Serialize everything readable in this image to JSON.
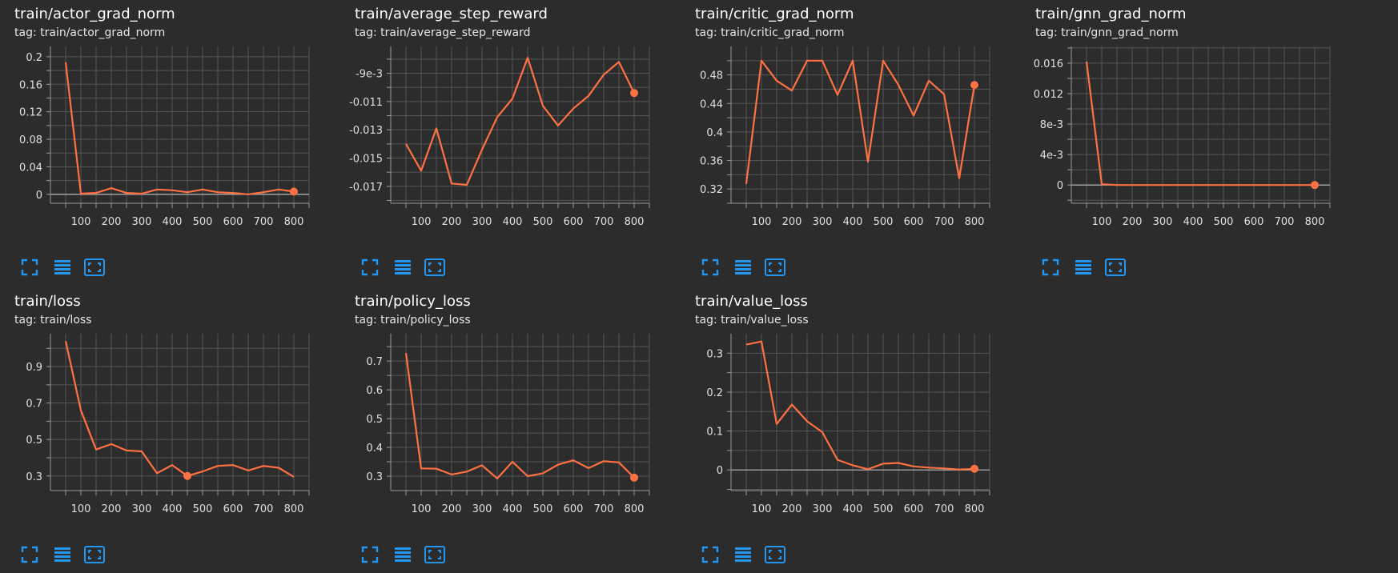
{
  "theme": {
    "background": "#2c2c2c",
    "line_color": "#ff7043",
    "grid_color": "#555555",
    "axis_color": "#999999",
    "tick_text_color": "#e0e0e0",
    "icon_color": "#2196f3"
  },
  "toolbar": {
    "icons": [
      "fullscreen-icon",
      "data-table-icon",
      "fit-domain-icon"
    ]
  },
  "cards": [
    {
      "title": "train/actor_grad_norm",
      "tag": "tag: train/actor_grad_norm"
    },
    {
      "title": "train/average_step_reward",
      "tag": "tag: train/average_step_reward"
    },
    {
      "title": "train/critic_grad_norm",
      "tag": "tag: train/critic_grad_norm"
    },
    {
      "title": "train/gnn_grad_norm",
      "tag": "tag: train/gnn_grad_norm"
    },
    {
      "title": "train/loss",
      "tag": "tag: train/loss"
    },
    {
      "title": "train/policy_loss",
      "tag": "tag: train/policy_loss"
    },
    {
      "title": "train/value_loss",
      "tag": "tag: train/value_loss"
    }
  ],
  "chart_data": [
    {
      "type": "line",
      "title": "train/actor_grad_norm",
      "x": [
        50,
        100,
        150,
        200,
        250,
        300,
        350,
        400,
        450,
        500,
        550,
        600,
        650,
        700,
        750,
        800
      ],
      "y": [
        0.192,
        0.001,
        0.002,
        0.009,
        0.002,
        0.001,
        0.007,
        0.006,
        0.003,
        0.007,
        0.003,
        0.002,
        0.0,
        0.003,
        0.007,
        0.004
      ],
      "xlim": [
        0,
        850
      ],
      "ylim": [
        -0.013,
        0.215
      ],
      "xticks": [
        100,
        200,
        300,
        400,
        500,
        600,
        700,
        800
      ],
      "xtick_labels": [
        "100",
        "200",
        "300",
        "400",
        "500",
        "600",
        "700",
        "800"
      ],
      "yticks": [
        0,
        0.04,
        0.08,
        0.12,
        0.16,
        0.2
      ],
      "ytick_labels": [
        "0",
        "0.04",
        "0.08",
        "0.12",
        "0.16",
        "0.2"
      ],
      "minor_y": [
        0.02,
        0.06,
        0.1,
        0.14,
        0.18
      ],
      "zero_line": true,
      "marker": [
        800,
        0.004
      ]
    },
    {
      "type": "line",
      "title": "train/average_step_reward",
      "x": [
        50,
        100,
        150,
        200,
        250,
        300,
        350,
        400,
        450,
        500,
        550,
        600,
        650,
        700,
        750,
        800
      ],
      "y": [
        -0.014,
        -0.0159,
        -0.0129,
        -0.0168,
        -0.0169,
        -0.0144,
        -0.0121,
        -0.0108,
        -0.0079,
        -0.0113,
        -0.0127,
        -0.0115,
        -0.0106,
        -0.0091,
        -0.0082,
        -0.0104
      ],
      "xlim": [
        0,
        850
      ],
      "ylim": [
        -0.0182,
        -0.0071
      ],
      "xticks": [
        100,
        200,
        300,
        400,
        500,
        600,
        700,
        800
      ],
      "xtick_labels": [
        "100",
        "200",
        "300",
        "400",
        "500",
        "600",
        "700",
        "800"
      ],
      "yticks": [
        -0.017,
        -0.015,
        -0.013,
        -0.011,
        -0.009
      ],
      "ytick_labels": [
        "-0.017",
        "-0.015",
        "-0.013",
        "-0.011",
        "-9e-3"
      ],
      "minor_y": [
        -0.018,
        -0.016,
        -0.014,
        -0.012,
        -0.01,
        -0.008
      ],
      "zero_line": false,
      "marker": [
        800,
        -0.0104
      ]
    },
    {
      "type": "line",
      "title": "train/critic_grad_norm",
      "x": [
        50,
        100,
        150,
        200,
        250,
        300,
        350,
        400,
        450,
        500,
        550,
        600,
        650,
        700,
        750,
        800
      ],
      "y": [
        0.327,
        0.5,
        0.472,
        0.458,
        0.5,
        0.5,
        0.452,
        0.5,
        0.358,
        0.5,
        0.466,
        0.423,
        0.472,
        0.453,
        0.335,
        0.466
      ],
      "xlim": [
        0,
        850
      ],
      "ylim": [
        0.3,
        0.52
      ],
      "xticks": [
        100,
        200,
        300,
        400,
        500,
        600,
        700,
        800
      ],
      "xtick_labels": [
        "100",
        "200",
        "300",
        "400",
        "500",
        "600",
        "700",
        "800"
      ],
      "yticks": [
        0.32,
        0.36,
        0.4,
        0.44,
        0.48
      ],
      "ytick_labels": [
        "0.32",
        "0.36",
        "0.4",
        "0.44",
        "0.48"
      ],
      "minor_y": [
        0.3,
        0.34,
        0.38,
        0.42,
        0.46,
        0.5
      ],
      "zero_line": false,
      "marker": [
        800,
        0.466
      ]
    },
    {
      "type": "line",
      "title": "train/gnn_grad_norm",
      "x": [
        50,
        100,
        150,
        200,
        250,
        300,
        350,
        400,
        450,
        500,
        550,
        600,
        650,
        700,
        750,
        800
      ],
      "y": [
        0.0162,
        0.0001,
        0.0,
        0.0,
        0.0,
        0.0,
        0.0,
        0.0,
        0.0,
        0.0,
        0.0,
        0.0,
        0.0,
        0.0,
        0.0,
        0.0
      ],
      "xlim": [
        0,
        850
      ],
      "ylim": [
        -0.0024,
        0.0182
      ],
      "xticks": [
        100,
        200,
        300,
        400,
        500,
        600,
        700,
        800
      ],
      "xtick_labels": [
        "100",
        "200",
        "300",
        "400",
        "500",
        "600",
        "700",
        "800"
      ],
      "yticks": [
        0,
        0.004,
        0.008,
        0.012,
        0.016
      ],
      "ytick_labels": [
        "0",
        "4e-3",
        "8e-3",
        "0.012",
        "0.016"
      ],
      "minor_y": [
        -0.002,
        0.002,
        0.006,
        0.01,
        0.014,
        0.018
      ],
      "zero_line": true,
      "marker": [
        800,
        0.0
      ]
    },
    {
      "type": "line",
      "title": "train/loss",
      "x": [
        50,
        100,
        150,
        200,
        250,
        300,
        350,
        400,
        450,
        500,
        550,
        600,
        650,
        700,
        750,
        800
      ],
      "y": [
        1.04,
        0.66,
        0.445,
        0.475,
        0.44,
        0.435,
        0.315,
        0.36,
        0.3,
        0.325,
        0.355,
        0.36,
        0.33,
        0.355,
        0.345,
        0.295
      ],
      "xlim": [
        0,
        850
      ],
      "ylim": [
        0.22,
        1.08
      ],
      "xticks": [
        100,
        200,
        300,
        400,
        500,
        600,
        700,
        800
      ],
      "xtick_labels": [
        "100",
        "200",
        "300",
        "400",
        "500",
        "600",
        "700",
        "800"
      ],
      "yticks": [
        0.3,
        0.5,
        0.7,
        0.9
      ],
      "ytick_labels": [
        "0.3",
        "0.5",
        "0.7",
        "0.9"
      ],
      "minor_y": [
        0.4,
        0.6,
        0.8,
        1.0
      ],
      "zero_line": false,
      "marker": [
        450,
        0.3
      ]
    },
    {
      "type": "line",
      "title": "train/policy_loss",
      "x": [
        50,
        100,
        150,
        200,
        250,
        300,
        350,
        400,
        450,
        500,
        550,
        600,
        650,
        700,
        750,
        800
      ],
      "y": [
        0.728,
        0.327,
        0.326,
        0.306,
        0.316,
        0.338,
        0.292,
        0.35,
        0.3,
        0.31,
        0.34,
        0.355,
        0.328,
        0.352,
        0.348,
        0.295
      ],
      "xlim": [
        0,
        850
      ],
      "ylim": [
        0.25,
        0.795
      ],
      "xticks": [
        100,
        200,
        300,
        400,
        500,
        600,
        700,
        800
      ],
      "xtick_labels": [
        "100",
        "200",
        "300",
        "400",
        "500",
        "600",
        "700",
        "800"
      ],
      "yticks": [
        0.3,
        0.4,
        0.5,
        0.6,
        0.7
      ],
      "ytick_labels": [
        "0.3",
        "0.4",
        "0.5",
        "0.6",
        "0.7"
      ],
      "minor_y": [
        0.35,
        0.45,
        0.55,
        0.65,
        0.75
      ],
      "zero_line": false,
      "marker": [
        800,
        0.295
      ]
    },
    {
      "type": "line",
      "title": "train/value_loss",
      "x": [
        50,
        100,
        150,
        200,
        250,
        300,
        350,
        400,
        450,
        500,
        550,
        600,
        650,
        700,
        750,
        800
      ],
      "y": [
        0.322,
        0.33,
        0.118,
        0.168,
        0.125,
        0.097,
        0.026,
        0.012,
        0.002,
        0.016,
        0.018,
        0.009,
        0.006,
        0.004,
        0.001,
        0.003
      ],
      "xlim": [
        0,
        850
      ],
      "ylim": [
        -0.053,
        0.35
      ],
      "xticks": [
        100,
        200,
        300,
        400,
        500,
        600,
        700,
        800
      ],
      "xtick_labels": [
        "100",
        "200",
        "300",
        "400",
        "500",
        "600",
        "700",
        "800"
      ],
      "yticks": [
        0,
        0.1,
        0.2,
        0.3
      ],
      "ytick_labels": [
        "0",
        "0.1",
        "0.2",
        "0.3"
      ],
      "minor_y": [
        -0.05,
        0.05,
        0.15,
        0.25
      ],
      "zero_line": true,
      "marker": [
        800,
        0.003
      ]
    }
  ]
}
